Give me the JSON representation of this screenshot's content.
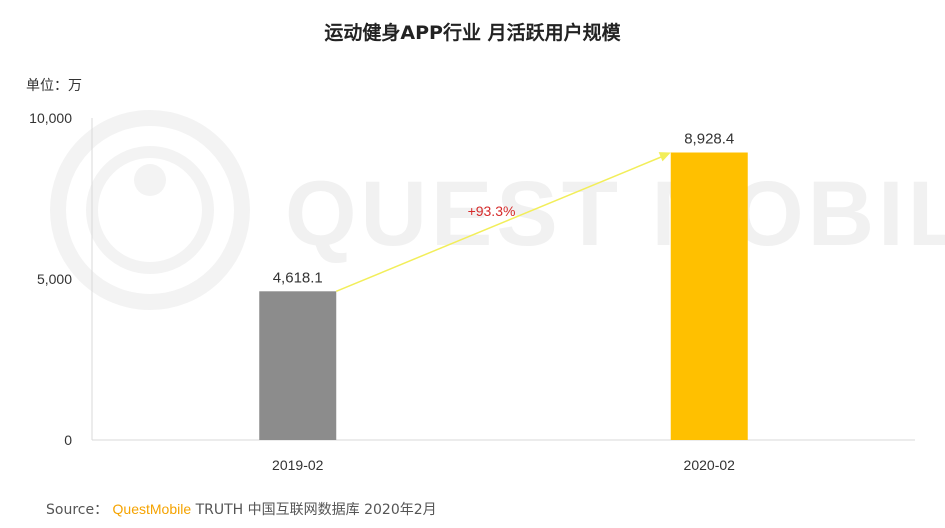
{
  "chart_data": {
    "type": "bar",
    "title": "运动健身APP行业 月活跃用户规模",
    "unit_label": "单位：万",
    "categories": [
      "2019-02",
      "2020-02"
    ],
    "values": [
      4618.1,
      8928.4
    ],
    "value_labels": [
      "4,618.1",
      "8,928.4"
    ],
    "bar_colors": [
      "#8c8c8c",
      "#ffc000"
    ],
    "ylim": [
      0,
      10000
    ],
    "yticks": [
      0,
      5000,
      10000
    ],
    "ytick_labels": [
      "0",
      "5,000",
      "10,000"
    ],
    "growth_annotation": "+93.3%",
    "growth_arrow_color": "#f2ee5a",
    "growth_text_color": "#d62b2b",
    "grid": false,
    "legend": "none"
  },
  "watermark": "QUEST MOBILE",
  "source": {
    "prefix": "Source：",
    "brand": "QuestMobile",
    "text": "TRUTH 中国互联网数据库 2020年2月"
  }
}
